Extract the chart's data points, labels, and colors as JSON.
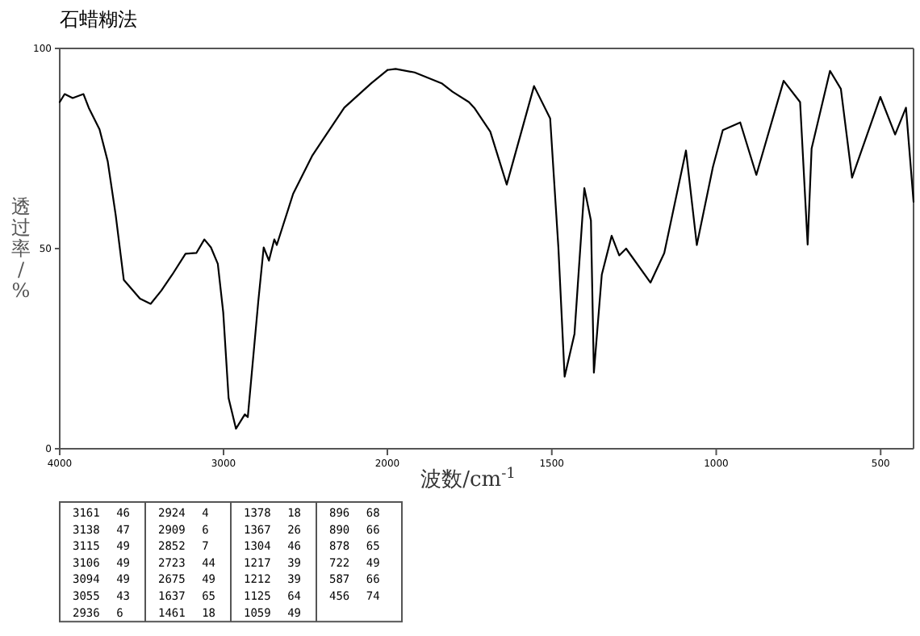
{
  "chart_data": [
    {
      "type": "line",
      "title": "石蜡糊法",
      "ylabel": "透过率/%",
      "color": "#000000",
      "x": [
        4000,
        3970,
        3921,
        3855,
        3823,
        3757,
        3707,
        3658,
        3609,
        3510,
        3445,
        3380,
        3313,
        3232,
        3166,
        3117,
        3077,
        3035,
        3002,
        2969,
        2924,
        2870,
        2852,
        2788,
        2755,
        2723,
        2690,
        2675,
        2575,
        2460,
        2394,
        2263,
        2098,
        2000
      ],
      "values": [
        86.6,
        88.6,
        87.6,
        88.6,
        85.2,
        79.8,
        71.8,
        58.3,
        42.2,
        37.5,
        36.2,
        39.5,
        43.5,
        48.7,
        48.9,
        52.3,
        50.3,
        46.2,
        34.1,
        12.6,
        5,
        8.6,
        7.9,
        36.8,
        50.3,
        47,
        52.3,
        50.9,
        63.7,
        73.1,
        77.2,
        85.2,
        91.3,
        94.6
      ],
      "xlim": [
        4000,
        2000
      ],
      "ylim": [
        0,
        100
      ],
      "xticks": [
        4000,
        3000,
        2000
      ],
      "yticks": [
        0,
        50,
        100
      ],
      "annotations": [
        "3161 46",
        "3138 47",
        "3115 49",
        "3106 49",
        "3094 49",
        "3055 43",
        "2936 6",
        "2924 4",
        "2909 6",
        "2852 7",
        "2723 44",
        "2675 49",
        "1637 65",
        "1461 18",
        "1378 18",
        "1367 26",
        "1304 46",
        "1217 39",
        "1212 39",
        "1125 64",
        "1059 49",
        "896 68",
        "890 66",
        "878 65",
        "722 49",
        "587 66",
        "456 74"
      ]
    },
    {
      "type": "line",
      "xlabel": "波数/cm$^{-1}$",
      "color": "#000000",
      "x": [
        2000,
        1975,
        1917,
        1835,
        1802,
        1752,
        1736,
        1687,
        1637,
        1554,
        1505,
        1480,
        1461,
        1431,
        1401,
        1381,
        1372,
        1348,
        1318,
        1295,
        1274,
        1200,
        1158,
        1092,
        1059,
        1010,
        980,
        927,
        878,
        795,
        745,
        722,
        710,
        654,
        621,
        587,
        501,
        456,
        423,
        400
      ],
      "values": [
        94.6,
        94.9,
        94,
        91.3,
        89.2,
        86.6,
        85.2,
        79.2,
        66,
        90.6,
        82.5,
        50.3,
        18,
        28.7,
        65.1,
        57,
        19,
        43.5,
        53.2,
        48.3,
        50,
        41.5,
        48.9,
        74.5,
        50.9,
        70.4,
        79.6,
        81.5,
        68.4,
        91.9,
        86.6,
        51,
        75,
        94.4,
        89.9,
        67.7,
        87.9,
        78.5,
        85.2,
        61.7
      ],
      "xlim": [
        2000,
        400
      ],
      "ylim": [
        0,
        100
      ],
      "xticks": [
        1500,
        1000,
        500
      ],
      "tick_labels": "x"
    }
  ]
}
